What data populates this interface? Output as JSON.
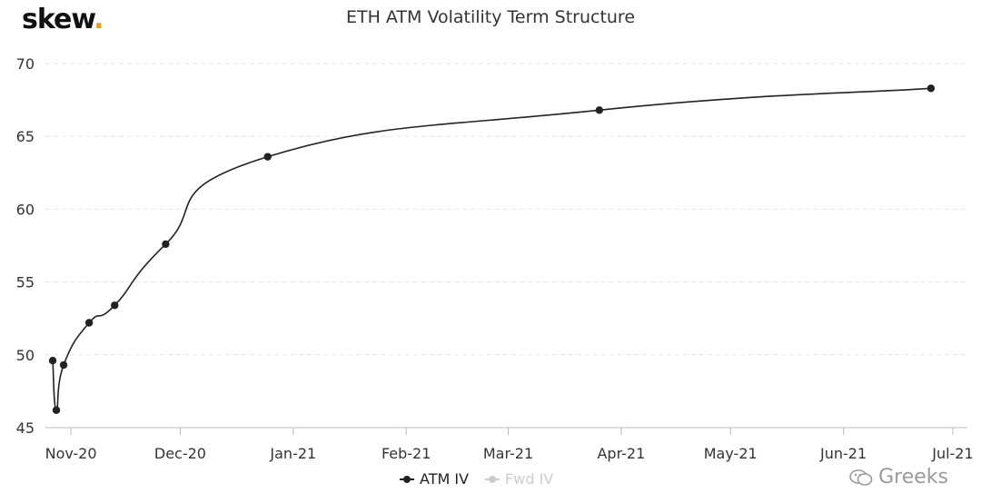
{
  "brand": {
    "name": "skew",
    "dot": "."
  },
  "chart_data": {
    "type": "line",
    "title": "ETH ATM Volatility Term Structure",
    "xlabel": "",
    "ylabel": "",
    "ylim": [
      45,
      70
    ],
    "yticks": [
      45,
      50,
      55,
      60,
      65,
      70
    ],
    "grid": true,
    "legend_position": "bottom-center",
    "x_ticks": [
      {
        "label": "Nov-20",
        "date": "2020-11-01"
      },
      {
        "label": "Dec-20",
        "date": "2020-12-01"
      },
      {
        "label": "Jan-21",
        "date": "2021-01-01"
      },
      {
        "label": "Feb-21",
        "date": "2021-02-01"
      },
      {
        "label": "Mar-21",
        "date": "2021-03-01"
      },
      {
        "label": "Apr-21",
        "date": "2021-04-01"
      },
      {
        "label": "May-21",
        "date": "2021-05-01"
      },
      {
        "label": "Jun-21",
        "date": "2021-06-01"
      },
      {
        "label": "Jul-21",
        "date": "2021-07-01"
      }
    ],
    "series": [
      {
        "name": "ATM IV",
        "color": "#222222",
        "visible": true,
        "points": [
          {
            "x": "2020-10-27",
            "y": 49.6
          },
          {
            "x": "2020-10-28",
            "y": 46.2
          },
          {
            "x": "2020-10-30",
            "y": 49.3
          },
          {
            "x": "2020-11-06",
            "y": 52.2
          },
          {
            "x": "2020-11-13",
            "y": 53.4
          },
          {
            "x": "2020-11-27",
            "y": 57.6
          },
          {
            "x": "2020-12-25",
            "y": 63.6
          },
          {
            "x": "2021-03-26",
            "y": 66.8
          },
          {
            "x": "2021-06-25",
            "y": 68.3
          }
        ]
      },
      {
        "name": "Fwd IV",
        "color": "#cccccc",
        "visible": false,
        "points": []
      }
    ]
  },
  "watermark": {
    "text": "Greeks"
  }
}
